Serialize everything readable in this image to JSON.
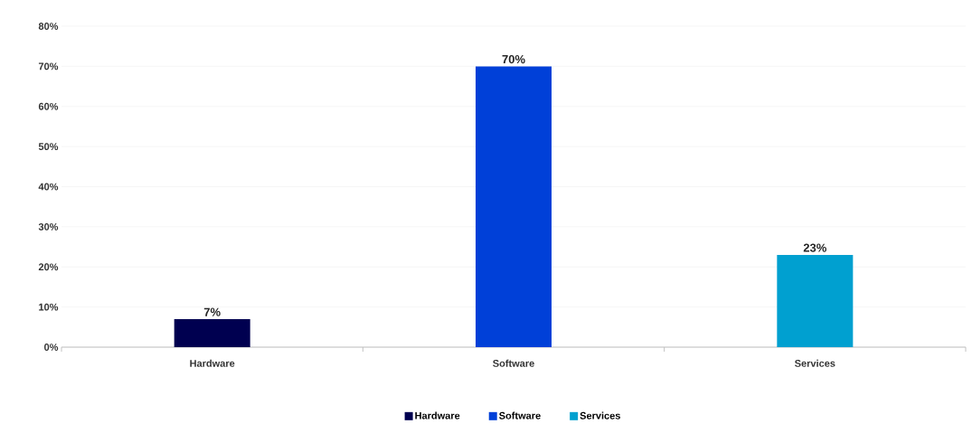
{
  "chart_data": {
    "type": "bar",
    "categories": [
      "Hardware",
      "Software",
      "Services"
    ],
    "series": [
      {
        "name": "Hardware",
        "color": "#000050",
        "values": [
          7,
          null,
          null
        ],
        "value_labels": [
          "7%",
          null,
          null
        ]
      },
      {
        "name": "Software",
        "color": "#0040d8",
        "values": [
          null,
          70,
          null
        ],
        "value_labels": [
          null,
          "70%",
          null
        ]
      },
      {
        "name": "Services",
        "color": "#00a0d0",
        "values": [
          null,
          null,
          23
        ],
        "value_labels": [
          null,
          null,
          "23%"
        ]
      }
    ],
    "ylim": [
      0,
      80
    ],
    "yticks": [
      {
        "value": 0,
        "label": "0%"
      },
      {
        "value": 10,
        "label": "10%"
      },
      {
        "value": 20,
        "label": "20%"
      },
      {
        "value": 30,
        "label": "30%"
      },
      {
        "value": 40,
        "label": "40%"
      },
      {
        "value": 50,
        "label": "50%"
      },
      {
        "value": 60,
        "label": "60%"
      },
      {
        "value": 70,
        "label": "70%"
      },
      {
        "value": 80,
        "label": "80%"
      }
    ],
    "grid": "y",
    "legend": "bottom"
  }
}
